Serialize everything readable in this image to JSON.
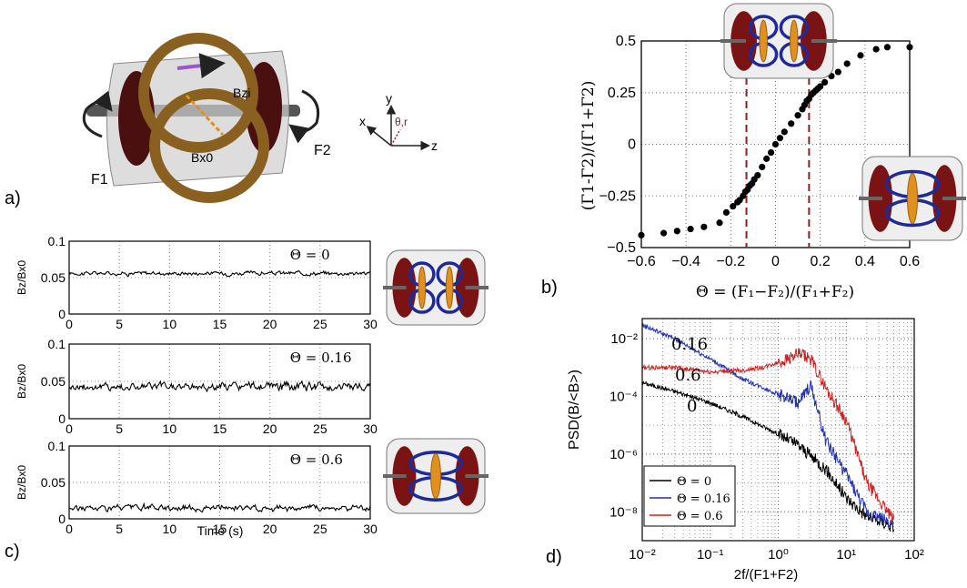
{
  "panel_labels": [
    "a)",
    "b)",
    "c)",
    "d)"
  ],
  "panel_a": {
    "labels": {
      "f1": "F1",
      "f2": "F2",
      "bzi": "Bzi",
      "bx0": "Bx0"
    },
    "axes_triad": {
      "x": "x",
      "y": "y",
      "z": "z",
      "theta_r": "θ,r"
    }
  },
  "colors": {
    "disc": "#7a1414",
    "coil_ring": "#8a6020",
    "cylinder": "#cfcfcf",
    "vortex_blue": "#1e2a9a",
    "vortex_orange": "#e0901e",
    "dashed_line": "#8a2020",
    "series_black": "#000000",
    "series_blue": "#2233aa",
    "series_red": "#cc2222"
  },
  "chart_data": [
    {
      "id": "panel-b",
      "type": "scatter",
      "xlabel": "Θ = (F₁−F₂)/(F₁+F₂)",
      "ylabel": "(Γ1-Γ2)/(Γ1+Γ2)",
      "xlim": [
        -0.6,
        0.6
      ],
      "ylim": [
        -0.5,
        0.5
      ],
      "xticks": [
        "−0.6",
        "−0.4",
        "−0.2",
        "0",
        "0.2",
        "0.4",
        "0.6"
      ],
      "yticks": [
        "0.5",
        "0.25",
        "0",
        "−0.25",
        "−0.5"
      ],
      "grid": true,
      "vlines": [
        -0.13,
        0.15
      ],
      "points": [
        [
          -0.6,
          -0.44
        ],
        [
          -0.5,
          -0.43
        ],
        [
          -0.44,
          -0.42
        ],
        [
          -0.38,
          -0.41
        ],
        [
          -0.32,
          -0.4
        ],
        [
          -0.25,
          -0.38
        ],
        [
          -0.22,
          -0.33
        ],
        [
          -0.19,
          -0.3
        ],
        [
          -0.17,
          -0.28
        ],
        [
          -0.16,
          -0.27
        ],
        [
          -0.145,
          -0.25
        ],
        [
          -0.135,
          -0.23
        ],
        [
          -0.125,
          -0.22
        ],
        [
          -0.115,
          -0.2
        ],
        [
          -0.105,
          -0.19
        ],
        [
          -0.095,
          -0.17
        ],
        [
          -0.08,
          -0.15
        ],
        [
          -0.06,
          -0.11
        ],
        [
          -0.04,
          -0.07
        ],
        [
          -0.02,
          -0.04
        ],
        [
          0.0,
          0.0
        ],
        [
          0.02,
          0.03
        ],
        [
          0.04,
          0.06
        ],
        [
          0.07,
          0.1
        ],
        [
          0.1,
          0.14
        ],
        [
          0.12,
          0.17
        ],
        [
          0.13,
          0.19
        ],
        [
          0.14,
          0.21
        ],
        [
          0.15,
          0.22
        ],
        [
          0.16,
          0.24
        ],
        [
          0.17,
          0.25
        ],
        [
          0.18,
          0.26
        ],
        [
          0.19,
          0.27
        ],
        [
          0.2,
          0.28
        ],
        [
          0.22,
          0.3
        ],
        [
          0.25,
          0.33
        ],
        [
          0.28,
          0.35
        ],
        [
          0.32,
          0.39
        ],
        [
          0.38,
          0.43
        ],
        [
          0.45,
          0.46
        ],
        [
          0.5,
          0.47
        ],
        [
          0.6,
          0.47
        ]
      ]
    },
    {
      "id": "panel-c",
      "type": "line",
      "xlabel": "Time (s)",
      "ylabel": "Bz/Bx0",
      "xlim": [
        0,
        30
      ],
      "ylim": [
        0,
        0.1
      ],
      "xticks": [
        "0",
        "5",
        "10",
        "15",
        "20",
        "25",
        "30"
      ],
      "yticks": [
        "0.1",
        "0.05",
        "0"
      ],
      "grid": true,
      "subplots": [
        {
          "annotation": "Θ = 0",
          "mean": 0.056,
          "noise": 0.002
        },
        {
          "annotation": "Θ = 0.16",
          "mean": 0.043,
          "noise": 0.004
        },
        {
          "annotation": "Θ = 0.6",
          "mean": 0.015,
          "noise": 0.003
        }
      ]
    },
    {
      "id": "panel-d",
      "type": "line",
      "scale": "log-log",
      "xlabel": "2f/(F1+F2)",
      "ylabel": "PSD(B/<B>)",
      "xlim": [
        0.01,
        100
      ],
      "ylim": [
        1e-09,
        0.05
      ],
      "xticks": [
        "10⁻²",
        "10⁻¹",
        "10⁰",
        "10¹",
        "10²"
      ],
      "yticks": [
        "10⁻²",
        "10⁻⁴",
        "10⁻⁶",
        "10⁻⁸"
      ],
      "grid": true,
      "legend_position": "bottom-left",
      "curve_labels": [
        "0.16",
        "0.6",
        "0"
      ],
      "series": [
        {
          "name": "Θ = 0",
          "color": "#000000",
          "x": [
            0.01,
            0.03,
            0.1,
            0.3,
            1,
            2,
            5,
            10,
            20,
            50
          ],
          "y": [
            0.0003,
            0.00015,
            6e-05,
            2e-05,
            5e-06,
            2e-06,
            3e-07,
            3e-08,
            7e-09,
            3e-09
          ]
        },
        {
          "name": "Θ = 0.16",
          "color": "#2233aa",
          "x": [
            0.01,
            0.03,
            0.1,
            0.3,
            1,
            2,
            3,
            5,
            10,
            20,
            50
          ],
          "y": [
            0.03,
            0.01,
            0.002,
            0.0004,
            0.00012,
            6e-05,
            0.00025,
            3e-06,
            2e-07,
            1e-08,
            4e-09
          ]
        },
        {
          "name": "Θ = 0.6",
          "color": "#cc2222",
          "x": [
            0.01,
            0.03,
            0.1,
            0.3,
            0.6,
            1,
            2,
            3,
            5,
            10,
            20,
            50
          ],
          "y": [
            0.001,
            0.001,
            0.0007,
            0.0008,
            0.001,
            0.0015,
            0.003,
            0.002,
            0.0002,
            1.5e-05,
            1e-07,
            5e-09
          ]
        }
      ]
    }
  ]
}
